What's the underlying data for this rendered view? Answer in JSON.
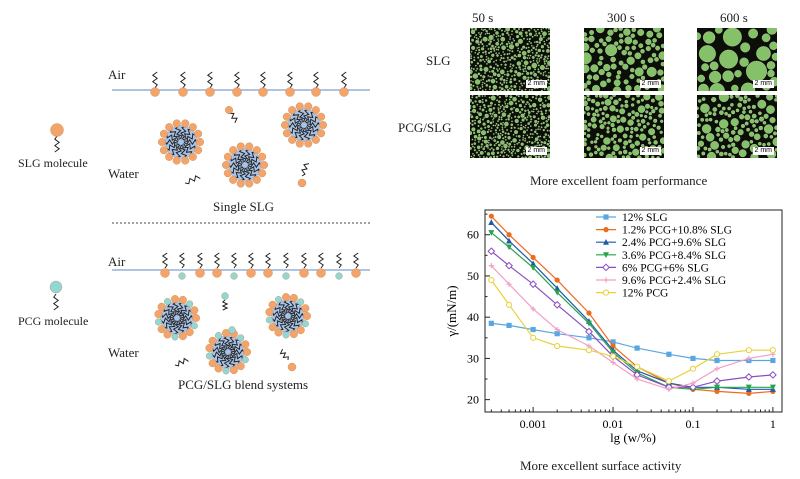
{
  "left": {
    "top": {
      "air_label": "Air",
      "water_label": "Water",
      "molecule_label": "SLG molecule",
      "caption": "Single SLG"
    },
    "bottom": {
      "air_label": "Air",
      "water_label": "Water",
      "molecule_label": "PCG molecule",
      "caption": "PCG/SLG blend systems"
    },
    "colors": {
      "slg_head": "#f2a46a",
      "pcg_head": "#8fd8d6",
      "micelle_core": "#a9c4e8",
      "interface_line": "#7f9fd0"
    }
  },
  "foam": {
    "time_labels": [
      "50 s",
      "300 s",
      "600 s"
    ],
    "row_labels": [
      "SLG",
      "PCG/SLG"
    ],
    "scale_label": "2 mm",
    "caption": "More excellent foam performance",
    "bubble_color": "#9be07a"
  },
  "chart_caption": "More excellent surface activity",
  "chart_data": {
    "type": "line",
    "xlabel": "lg (w/%)",
    "ylabel": "γ/(mN/m)",
    "x_scale": "log",
    "xlim": [
      0.00025,
      1.3
    ],
    "ylim": [
      17,
      66
    ],
    "x_ticks": [
      0.001,
      0.01,
      0.1,
      1
    ],
    "x_tick_labels": [
      "0.001",
      "0.01",
      "0.1",
      "1"
    ],
    "y_ticks": [
      20,
      30,
      40,
      50,
      60
    ],
    "y_tick_labels": [
      "20",
      "30",
      "40",
      "50",
      "60"
    ],
    "legend_position": "top-right",
    "series": [
      {
        "name": "12% SLG",
        "color": "#5aa6e0",
        "marker": "square",
        "x": [
          0.0003,
          0.0005,
          0.001,
          0.002,
          0.005,
          0.01,
          0.02,
          0.05,
          0.1,
          0.2,
          0.5,
          1.0
        ],
        "y": [
          38.5,
          38,
          37,
          36,
          35,
          34,
          32.5,
          31,
          30,
          29.5,
          29.5,
          29.5
        ]
      },
      {
        "name": "1.2% PCG+10.8% SLG",
        "color": "#ee6a1c",
        "marker": "circle",
        "x": [
          0.0003,
          0.0005,
          0.001,
          0.002,
          0.005,
          0.01,
          0.02,
          0.05,
          0.1,
          0.2,
          0.5,
          1.0
        ],
        "y": [
          64.5,
          60,
          54.5,
          49,
          41,
          33,
          28,
          24,
          22.5,
          22,
          21.5,
          22
        ]
      },
      {
        "name": "2.4% PCG+9.6% SLG",
        "color": "#1f5aa8",
        "marker": "triangle-up",
        "x": [
          0.0003,
          0.0005,
          0.001,
          0.002,
          0.005,
          0.01,
          0.02,
          0.05,
          0.1,
          0.2,
          0.5,
          1.0
        ],
        "y": [
          63,
          58.5,
          53,
          47,
          39,
          32,
          27,
          24,
          23,
          23,
          22.5,
          22.5
        ]
      },
      {
        "name": "3.6% PCG+8.4% SLG",
        "color": "#27a34a",
        "marker": "triangle-down",
        "x": [
          0.0003,
          0.0005,
          0.001,
          0.002,
          0.005,
          0.01,
          0.02,
          0.05,
          0.1,
          0.2,
          0.5,
          1.0
        ],
        "y": [
          60.5,
          57,
          52,
          46,
          38.5,
          31.5,
          26.5,
          23,
          22.5,
          23,
          23,
          23
        ]
      },
      {
        "name": "6% PCG+6% SLG",
        "color": "#8a4fc0",
        "marker": "diamond",
        "x": [
          0.0003,
          0.0005,
          0.001,
          0.002,
          0.005,
          0.01,
          0.02,
          0.05,
          0.1,
          0.2,
          0.5,
          1.0
        ],
        "y": [
          56,
          52.5,
          48,
          43,
          36.5,
          30.5,
          26,
          23,
          23,
          24.5,
          25.5,
          26
        ]
      },
      {
        "name": "9.6% PCG+2.4% SLG",
        "color": "#f2a0c8",
        "marker": "plus",
        "x": [
          0.0003,
          0.0005,
          0.001,
          0.002,
          0.005,
          0.01,
          0.02,
          0.05,
          0.1,
          0.2,
          0.5,
          1.0
        ],
        "y": [
          52.5,
          48,
          42,
          37,
          33,
          29,
          25,
          22.5,
          24,
          27.5,
          30,
          31
        ]
      },
      {
        "name": "12% PCG",
        "color": "#e8d23a",
        "marker": "circle-open",
        "x": [
          0.0003,
          0.0005,
          0.001,
          0.002,
          0.005,
          0.01,
          0.02,
          0.05,
          0.1,
          0.2,
          0.5,
          1.0
        ],
        "y": [
          49,
          43,
          35,
          33,
          32,
          30.5,
          28,
          24.5,
          27.5,
          31,
          32,
          32
        ]
      }
    ]
  }
}
